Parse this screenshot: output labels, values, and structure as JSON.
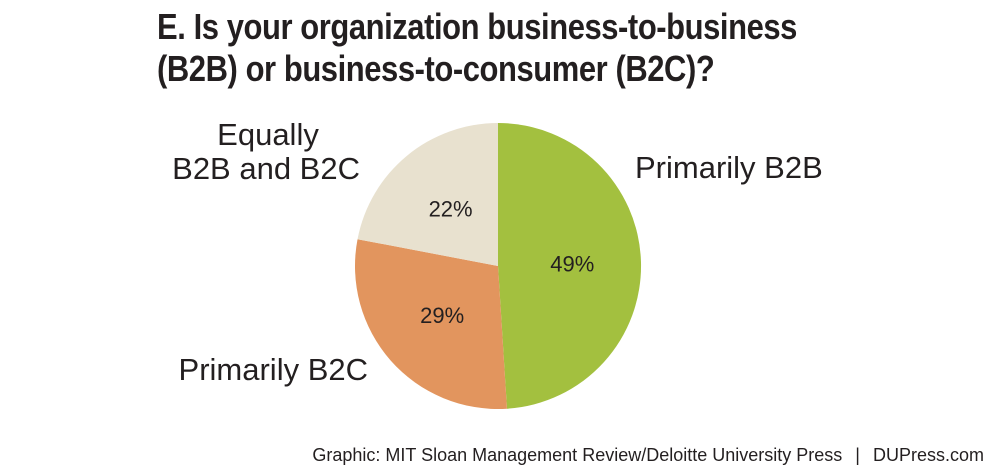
{
  "chart_data": {
    "type": "pie",
    "title_lines": [
      "E. Is your organization business-to-business",
      "(B2B) or business-to-consumer (B2C)?"
    ],
    "slices": [
      {
        "name": "Primarily B2B",
        "label_lines": [
          "Primarily B2B"
        ],
        "value": 49,
        "value_label": "49%",
        "color": "#a3c03f"
      },
      {
        "name": "Primarily B2C",
        "label_lines": [
          "Primarily B2C"
        ],
        "value": 29,
        "value_label": "29%",
        "color": "#e2955e"
      },
      {
        "name": "Equally B2B and B2C",
        "label_lines": [
          "Equally",
          "B2B and B2C"
        ],
        "value": 22,
        "value_label": "22%",
        "color": "#e8e1cf"
      }
    ],
    "start_angle": "12 o'clock",
    "direction": "clockwise",
    "legend": "none"
  },
  "footer": {
    "source": "Graphic: MIT Sloan Management Review/Deloitte University Press",
    "separator": "|",
    "site": "DUPress.com"
  }
}
